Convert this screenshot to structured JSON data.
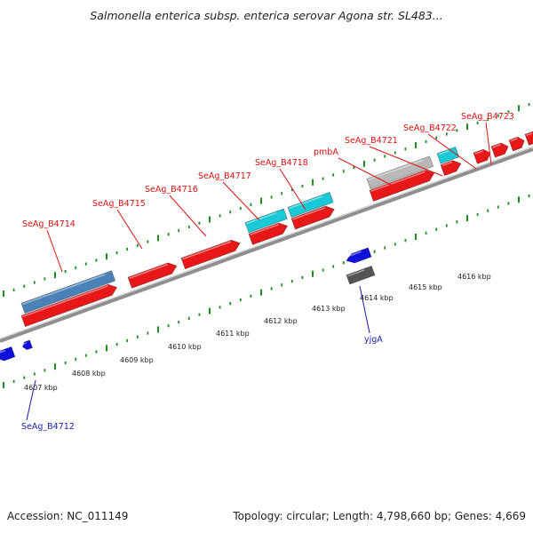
{
  "title": "Salmonella enterica subsp. enterica serovar Agona str. SL483...",
  "footer": {
    "accession": "Accession: NC_011149",
    "summary": "Topology: circular; Length: 4,798,660 bp; Genes: 4,669"
  },
  "colors": {
    "forward_gene": "#e81818",
    "forward_gene_stroke": "#9a0000",
    "cds_blue": "#4a82b8",
    "cds_cyan": "#19c9d6",
    "cds_gray": "#b8b8b8",
    "reverse_gene": "#1010dd",
    "reverse_cds_dark": "#555555",
    "backbone": "#8f8f8f",
    "tick": "#1f8c1f",
    "label_red": "#dd1111",
    "label_blue": "#1a1aaa"
  },
  "forward_labels": [
    {
      "text": "SeAg_B4714",
      "gene": "f0"
    },
    {
      "text": "SeAg_B4715",
      "gene": "f1"
    },
    {
      "text": "SeAg_B4716",
      "gene": "f2"
    },
    {
      "text": "SeAg_B4717",
      "gene": "f3"
    },
    {
      "text": "SeAg_B4718",
      "gene": "f4"
    },
    {
      "text": "pmbA",
      "gene": "f5"
    },
    {
      "text": "SeAg_B4721",
      "gene": "f6"
    },
    {
      "text": "SeAg_B4722",
      "gene": "f7"
    },
    {
      "text": "SeAg_B4723",
      "gene": "f8"
    }
  ],
  "reverse_labels": [
    {
      "text": "yjgA",
      "gene": "r2"
    },
    {
      "text": "SeAg_B4712",
      "gene": "r1"
    }
  ],
  "kbp_labels": [
    "4607 kbp",
    "4608 kbp",
    "4609 kbp",
    "4610 kbp",
    "4611 kbp",
    "4612 kbp",
    "4613 kbp",
    "4614 kbp",
    "4615 kbp",
    "4616 kbp"
  ]
}
